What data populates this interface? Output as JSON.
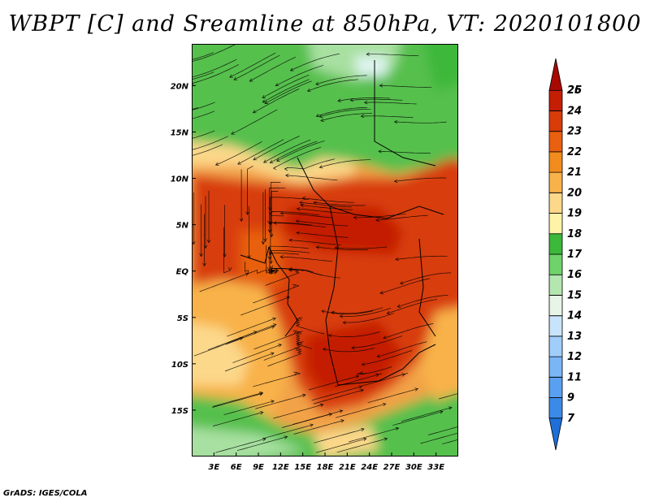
{
  "title": "WBPT [C] and Sreamline at 850hPa, VT: 2020101800",
  "footer": "GrADS: IGES/COLA",
  "map": {
    "lon_range": [
      0,
      36
    ],
    "lat_range": [
      -20,
      24.5
    ],
    "lat_ticks": [
      {
        "value": 20,
        "label": "20N"
      },
      {
        "value": 15,
        "label": "15N"
      },
      {
        "value": 10,
        "label": "10N"
      },
      {
        "value": 5,
        "label": "5N"
      },
      {
        "value": 0,
        "label": "EQ"
      },
      {
        "value": -5,
        "label": "5S"
      },
      {
        "value": -10,
        "label": "10S"
      },
      {
        "value": -15,
        "label": "15S"
      }
    ],
    "lon_ticks": [
      {
        "value": 3,
        "label": "3E"
      },
      {
        "value": 6,
        "label": "6E"
      },
      {
        "value": 9,
        "label": "9E"
      },
      {
        "value": 12,
        "label": "12E"
      },
      {
        "value": 15,
        "label": "15E"
      },
      {
        "value": 18,
        "label": "18E"
      },
      {
        "value": 21,
        "label": "21E"
      },
      {
        "value": 24,
        "label": "24E"
      },
      {
        "value": 27,
        "label": "27E"
      },
      {
        "value": 30,
        "label": "30E"
      },
      {
        "value": 33,
        "label": "33E"
      }
    ]
  },
  "colorbar": {
    "levels": [
      "7",
      "9",
      "11",
      "12",
      "13",
      "14",
      "15",
      "16",
      "17",
      "18",
      "19",
      "20",
      "21",
      "22",
      "23",
      "24",
      "25",
      "26"
    ],
    "colors": [
      "#1e6fd9",
      "#3c8ae8",
      "#5aa0f0",
      "#7ab6f5",
      "#a0cdfa",
      "#c8e4fc",
      "#e6f5e6",
      "#b4e6b0",
      "#6fd26a",
      "#3cb83a",
      "#fff3a8",
      "#fcd88a",
      "#f8b24a",
      "#f28c1e",
      "#e86010",
      "#d83c08",
      "#c41e04",
      "#a80a02"
    ]
  }
}
